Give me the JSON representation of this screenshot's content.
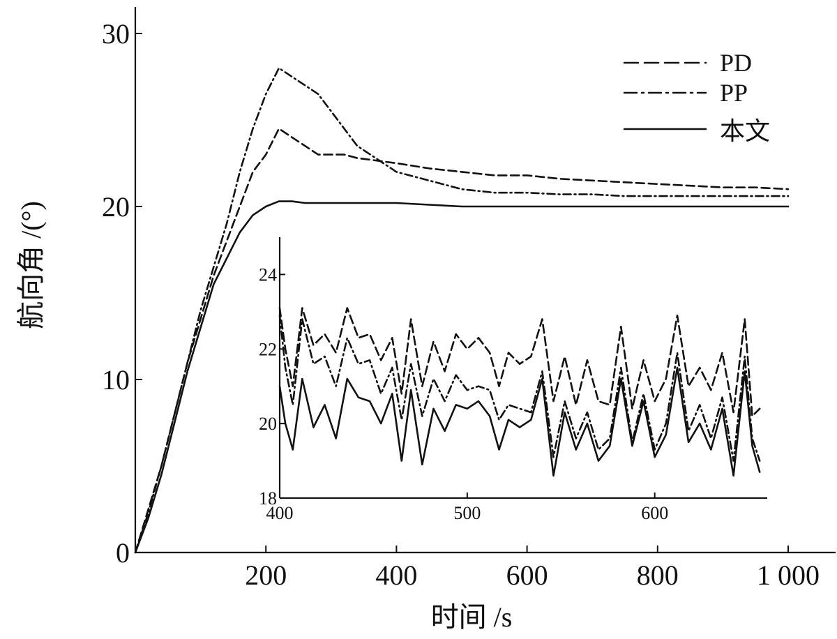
{
  "chart_data": [
    {
      "type": "line",
      "title": "",
      "xlabel": "时间 /s",
      "ylabel": "航向角 /(°)",
      "xlim": [
        0,
        1000
      ],
      "ylim": [
        0,
        30
      ],
      "xticks": [
        200,
        400,
        600,
        800,
        1000
      ],
      "xtick_labels": [
        "200",
        "400",
        "600",
        "800",
        "1 000"
      ],
      "yticks": [
        0,
        10,
        20,
        30
      ],
      "ytick_labels": [
        "0",
        "10",
        "20",
        "30"
      ],
      "grid": false,
      "legend_position": "top-right",
      "legend": [
        "PD",
        "PP",
        "本文"
      ],
      "series": [
        {
          "name": "PD",
          "line_style": "dashed",
          "x": [
            0,
            20,
            40,
            60,
            80,
            100,
            120,
            140,
            160,
            180,
            200,
            220,
            240,
            260,
            280,
            300,
            320,
            340,
            360,
            380,
            400,
            450,
            500,
            550,
            600,
            650,
            700,
            750,
            800,
            850,
            900,
            950,
            1000
          ],
          "y": [
            0,
            2.5,
            5,
            8,
            11,
            13.5,
            16,
            18,
            20,
            22,
            23,
            24.5,
            24,
            23.5,
            23,
            23,
            23,
            22.8,
            22.7,
            22.6,
            22.5,
            22.2,
            22,
            21.8,
            21.8,
            21.6,
            21.5,
            21.4,
            21.3,
            21.2,
            21.1,
            21.1,
            21
          ]
        },
        {
          "name": "PP",
          "line_style": "dash-dot",
          "x": [
            0,
            20,
            40,
            60,
            80,
            100,
            120,
            140,
            160,
            180,
            200,
            220,
            240,
            260,
            280,
            300,
            320,
            340,
            360,
            380,
            400,
            450,
            500,
            550,
            600,
            650,
            700,
            750,
            800,
            850,
            900,
            950,
            1000
          ],
          "y": [
            0,
            2.3,
            5,
            8,
            11,
            14,
            16.5,
            19,
            22,
            24.5,
            26.5,
            28,
            27.5,
            27,
            26.5,
            25.5,
            24.5,
            23.5,
            23,
            22.5,
            22,
            21.5,
            21,
            20.8,
            20.8,
            20.7,
            20.7,
            20.6,
            20.6,
            20.6,
            20.6,
            20.6,
            20.6
          ]
        },
        {
          "name": "本文",
          "line_style": "solid",
          "x": [
            0,
            20,
            40,
            60,
            80,
            100,
            120,
            140,
            160,
            180,
            200,
            220,
            240,
            260,
            280,
            300,
            320,
            340,
            360,
            380,
            400,
            450,
            500,
            550,
            600,
            650,
            700,
            750,
            800,
            850,
            900,
            950,
            1000
          ],
          "y": [
            0,
            2,
            4.5,
            7.5,
            10.5,
            13,
            15.5,
            17,
            18.5,
            19.5,
            20,
            20.3,
            20.3,
            20.2,
            20.2,
            20.2,
            20.2,
            20.2,
            20.2,
            20.2,
            20.2,
            20.1,
            20,
            20,
            20,
            20,
            20,
            20,
            20,
            20,
            20,
            20,
            20
          ]
        }
      ]
    },
    {
      "type": "line",
      "title": "",
      "xlabel": "",
      "ylabel": "",
      "xlim": [
        400,
        660
      ],
      "ylim": [
        18,
        25
      ],
      "xticks": [
        400,
        500,
        600
      ],
      "xtick_labels": [
        "400",
        "500",
        "600"
      ],
      "yticks": [
        18,
        20,
        22,
        24
      ],
      "ytick_labels": [
        "18",
        "20",
        "22",
        "24"
      ],
      "grid": false,
      "series": [
        {
          "name": "PD",
          "line_style": "dashed",
          "x": [
            400,
            403,
            407,
            412,
            418,
            424,
            430,
            436,
            442,
            448,
            454,
            460,
            465,
            470,
            476,
            482,
            488,
            494,
            500,
            506,
            512,
            517,
            522,
            528,
            534,
            540,
            546,
            552,
            558,
            564,
            570,
            576,
            582,
            588,
            594,
            600,
            606,
            612,
            618,
            624,
            630,
            636,
            642,
            648,
            652,
            656
          ],
          "y": [
            23.1,
            22.0,
            21.0,
            23.1,
            22.1,
            22.4,
            21.9,
            23.1,
            22.3,
            22.4,
            21.7,
            22.3,
            20.8,
            22.8,
            21.0,
            22.2,
            21.4,
            22.4,
            22.0,
            22.3,
            21.9,
            21.0,
            21.9,
            21.6,
            21.8,
            22.8,
            20.6,
            21.8,
            20.5,
            21.7,
            20.6,
            20.5,
            22.6,
            20.4,
            21.7,
            20.6,
            21.2,
            22.9,
            21.0,
            21.5,
            20.9,
            21.9,
            20.3,
            22.8,
            20.2,
            20.4
          ]
        },
        {
          "name": "PP",
          "line_style": "dash-dot",
          "x": [
            400,
            403,
            407,
            412,
            418,
            424,
            430,
            436,
            442,
            448,
            454,
            460,
            465,
            470,
            476,
            482,
            488,
            494,
            500,
            506,
            512,
            517,
            522,
            528,
            534,
            540,
            546,
            552,
            558,
            564,
            570,
            576,
            582,
            588,
            594,
            600,
            606,
            612,
            618,
            624,
            630,
            636,
            642,
            648,
            652,
            656
          ],
          "y": [
            22.9,
            21.5,
            20.5,
            22.8,
            21.6,
            21.8,
            21.0,
            22.3,
            21.6,
            21.7,
            20.8,
            21.5,
            20.1,
            21.6,
            20.2,
            21.2,
            20.6,
            21.3,
            20.9,
            21.0,
            20.9,
            20.1,
            20.5,
            20.4,
            20.3,
            21.4,
            19.1,
            20.6,
            19.6,
            20.3,
            19.3,
            19.6,
            21.5,
            19.5,
            20.8,
            19.3,
            20.0,
            21.9,
            19.8,
            20.5,
            19.6,
            20.7,
            19.0,
            21.8,
            19.6,
            19.0
          ]
        },
        {
          "name": "本文",
          "line_style": "solid",
          "x": [
            400,
            403,
            407,
            412,
            418,
            424,
            430,
            436,
            442,
            448,
            454,
            460,
            465,
            470,
            476,
            482,
            488,
            494,
            500,
            506,
            512,
            517,
            522,
            528,
            534,
            540,
            546,
            552,
            558,
            564,
            570,
            576,
            582,
            588,
            594,
            600,
            606,
            612,
            618,
            624,
            630,
            636,
            642,
            648,
            652,
            656
          ],
          "y": [
            21.0,
            20.0,
            19.3,
            21.2,
            19.9,
            20.5,
            19.6,
            21.2,
            20.7,
            20.6,
            20.0,
            20.8,
            19.0,
            20.9,
            18.9,
            20.4,
            19.8,
            20.5,
            20.4,
            20.6,
            20.2,
            19.3,
            20.1,
            19.9,
            20.1,
            21.2,
            18.6,
            20.3,
            19.3,
            20.0,
            19.0,
            19.4,
            21.2,
            19.4,
            20.6,
            19.1,
            19.7,
            21.5,
            19.5,
            20.0,
            19.3,
            20.4,
            18.6,
            21.4,
            19.4,
            18.7
          ]
        }
      ]
    }
  ]
}
